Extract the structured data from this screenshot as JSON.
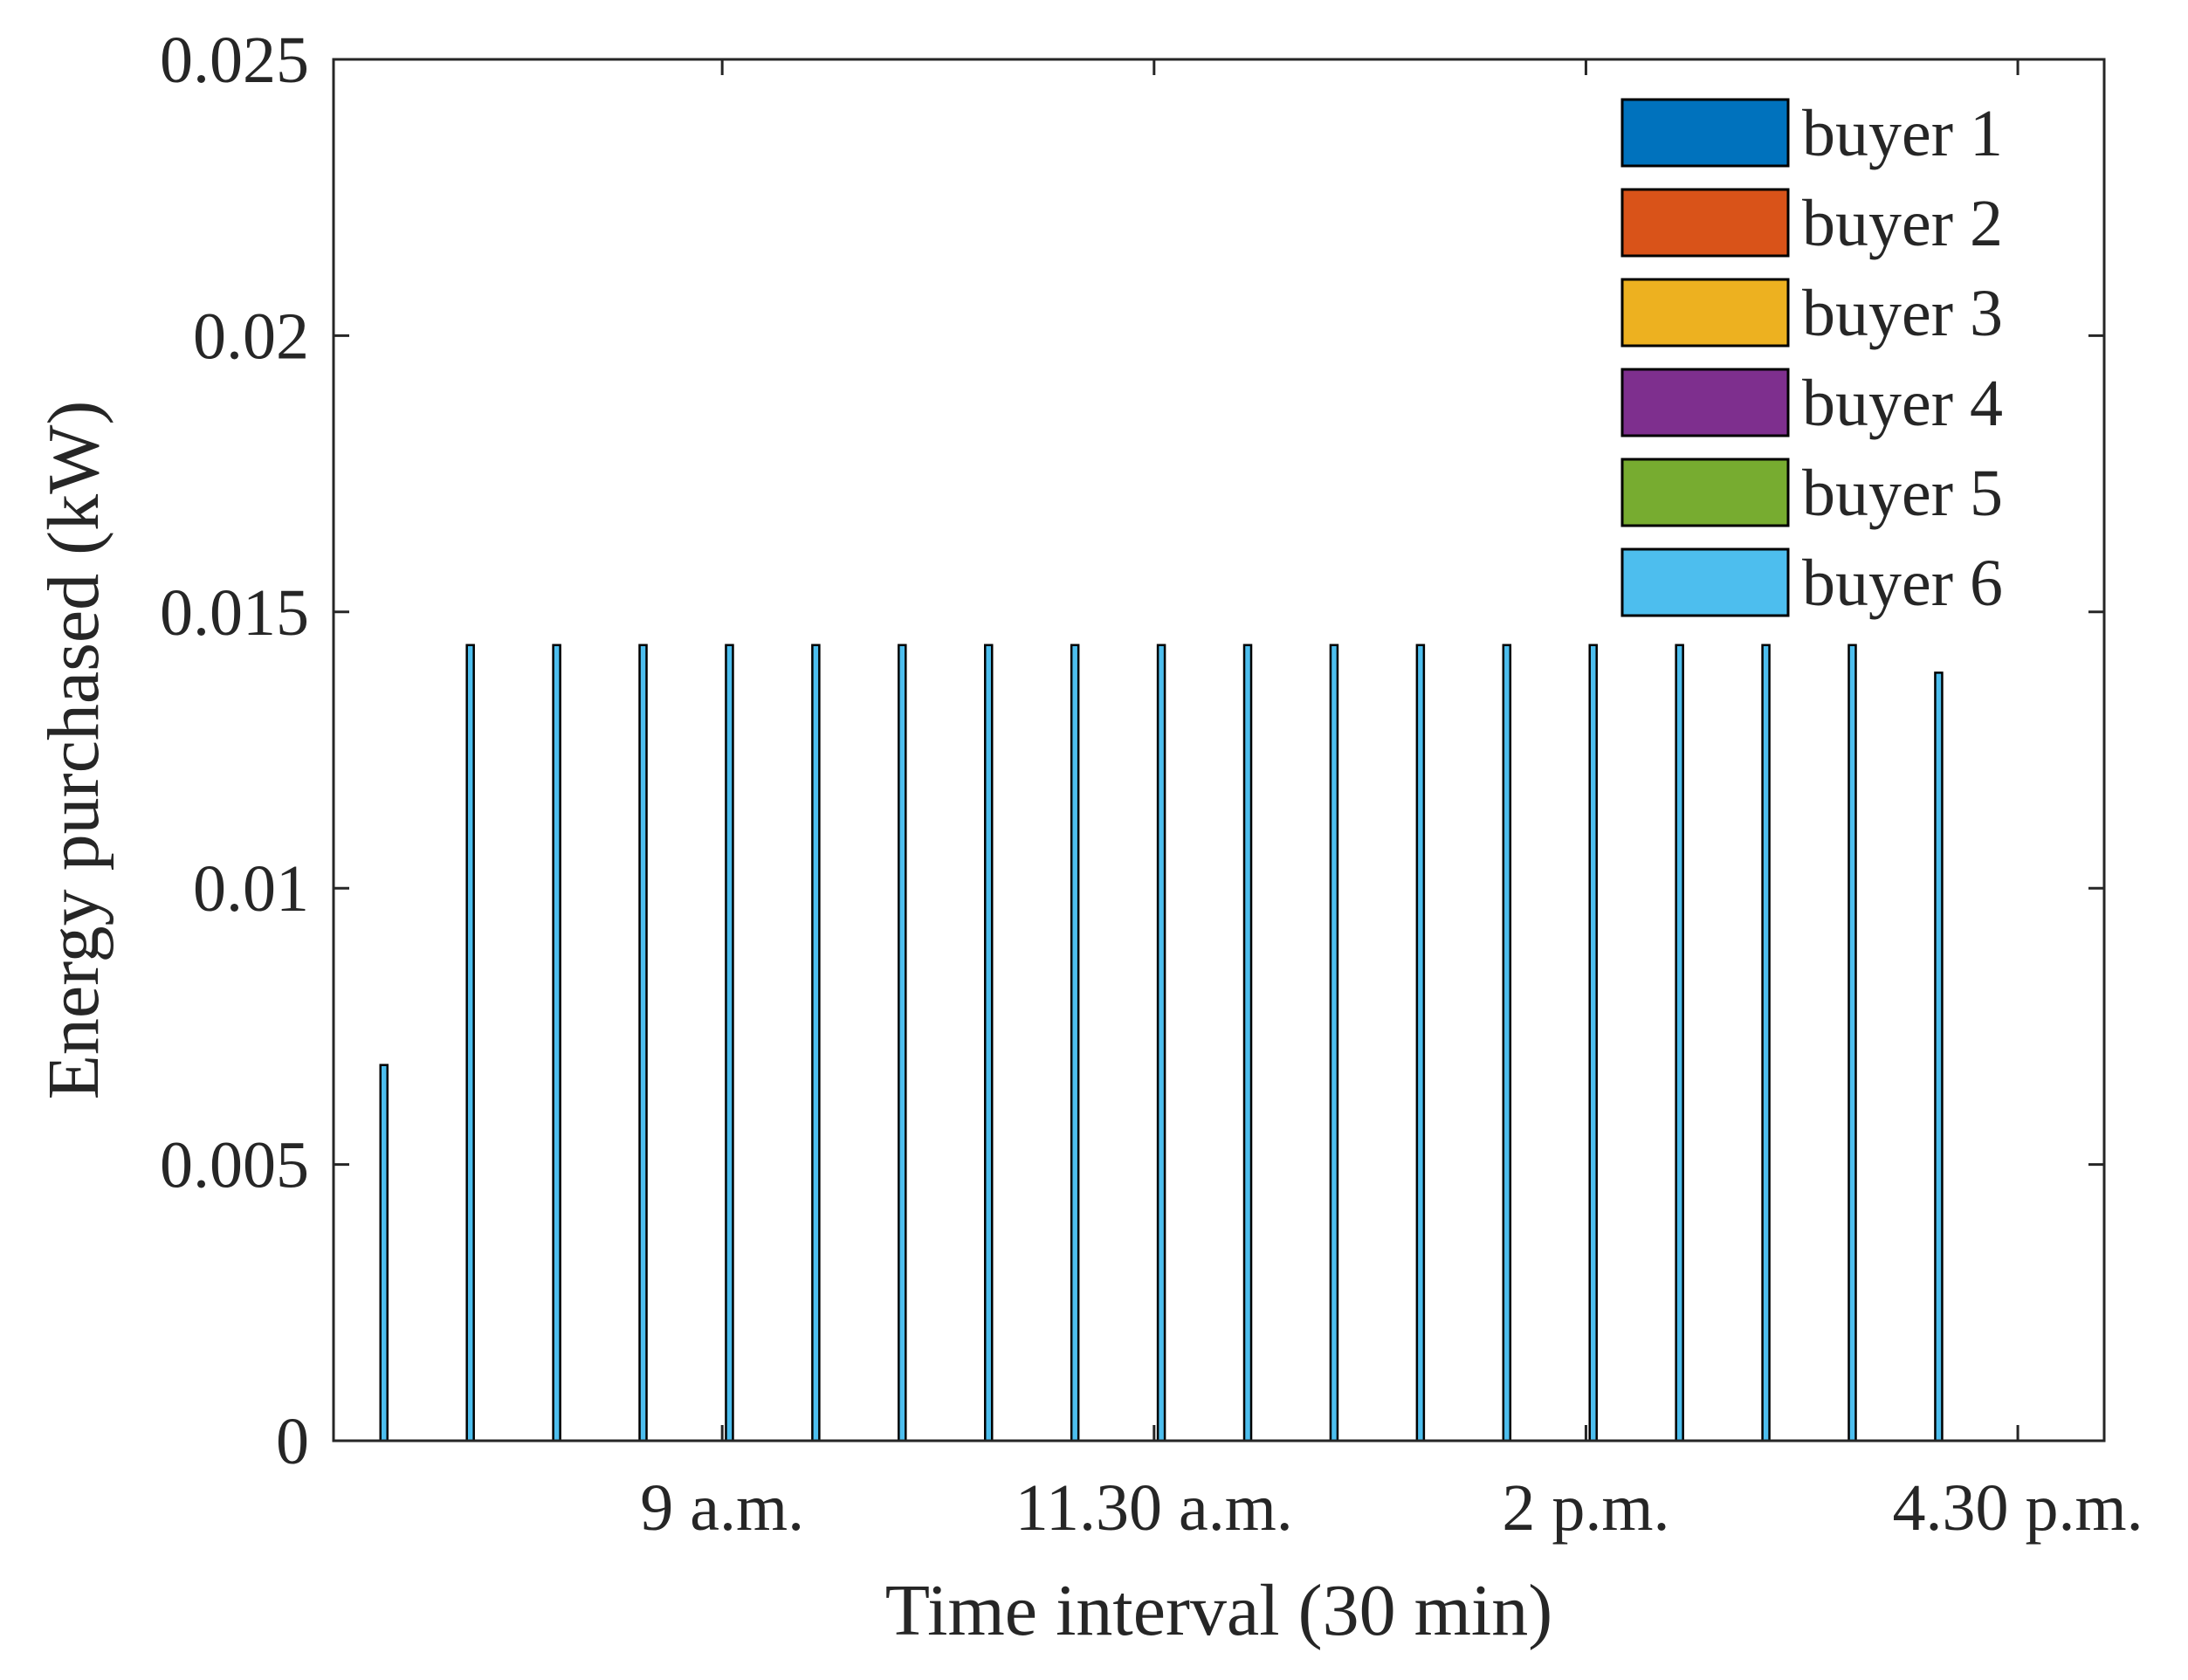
{
  "chart_data": {
    "type": "bar",
    "xlabel": "Time interval (30 min)",
    "ylabel": "Energy purchased (kW)",
    "ylim": [
      0,
      0.025
    ],
    "yticks": [
      0,
      0.005,
      0.01,
      0.015,
      0.02,
      0.025
    ],
    "ytick_labels": [
      "0",
      "0.005",
      "0.01",
      "0.015",
      "0.02",
      "0.025"
    ],
    "xtick_labels": [
      "9 a.m.",
      "11.30 a.m.",
      "2 p.m.",
      "4.30 p.m."
    ],
    "xtick_positions": [
      5,
      10,
      15,
      20
    ],
    "xlim": [
      0.5,
      21
    ],
    "legend_position": "top-right",
    "grid": false,
    "series": [
      {
        "name": "buyer 1",
        "color": "#0072BD",
        "values": [
          0,
          0,
          0,
          0,
          0,
          0,
          0,
          0,
          0,
          0,
          0,
          0,
          0,
          0,
          0,
          0,
          0,
          0,
          0
        ]
      },
      {
        "name": "buyer 2",
        "color": "#D95319",
        "values": [
          0,
          0,
          0,
          0,
          0,
          0,
          0,
          0,
          0,
          0,
          0,
          0,
          0,
          0,
          0,
          0,
          0,
          0,
          0
        ]
      },
      {
        "name": "buyer 3",
        "color": "#EDB120",
        "values": [
          0,
          0,
          0,
          0,
          0,
          0,
          0,
          0,
          0,
          0,
          0,
          0,
          0,
          0,
          0,
          0,
          0,
          0,
          0
        ]
      },
      {
        "name": "buyer 4",
        "color": "#7E2F8E",
        "values": [
          0,
          0,
          0,
          0,
          0,
          0,
          0,
          0,
          0,
          0,
          0,
          0,
          0,
          0,
          0,
          0,
          0,
          0,
          0
        ]
      },
      {
        "name": "buyer 5",
        "color": "#77AC30",
        "values": [
          0,
          0,
          0,
          0,
          0,
          0,
          0,
          0,
          0,
          0,
          0,
          0,
          0,
          0,
          0,
          0,
          0,
          0,
          0
        ]
      },
      {
        "name": "buyer 6",
        "color": "#4DBEEE",
        "values": [
          0.0068,
          0.0144,
          0.0144,
          0.0144,
          0.0144,
          0.0144,
          0.0144,
          0.0144,
          0.0144,
          0.0144,
          0.0144,
          0.0144,
          0.0144,
          0.0144,
          0.0144,
          0.0144,
          0.0144,
          0.0144,
          0.0139
        ]
      }
    ],
    "x": [
      1,
      2,
      3,
      4,
      5,
      6,
      7,
      8,
      9,
      10,
      11,
      12,
      13,
      14,
      15,
      16,
      17,
      18,
      19
    ]
  }
}
